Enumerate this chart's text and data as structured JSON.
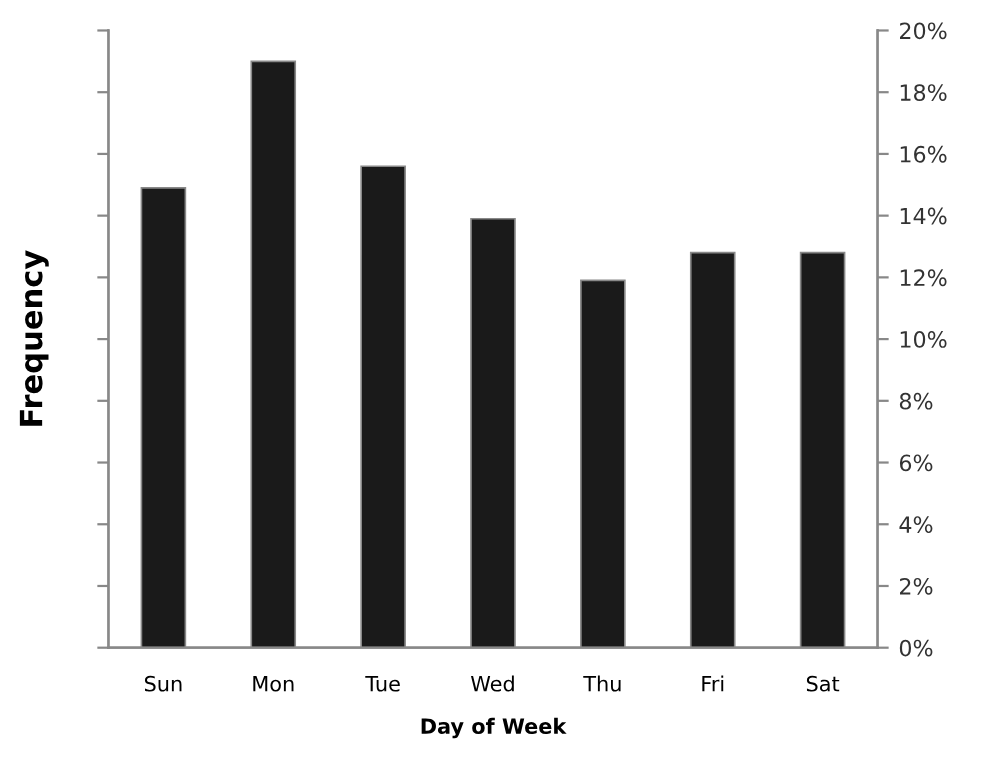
{
  "chart_data": {
    "type": "bar",
    "xlabel": "Day of Week",
    "ylabel": "Frequency",
    "categories": [
      "Sun",
      "Mon",
      "Tue",
      "Wed",
      "Thu",
      "Fri",
      "Sat"
    ],
    "series": [
      {
        "color": "#1a1a1a",
        "axis": "y2",
        "values": [
          14.9,
          19.0,
          15.6,
          13.9,
          11.9,
          12.8,
          12.8
        ]
      }
    ],
    "y2lim": [
      0,
      20
    ],
    "y2ticks": [
      {
        "value": 0,
        "label": "0%"
      },
      {
        "value": 2,
        "label": "2%"
      },
      {
        "value": 4,
        "label": "4%"
      },
      {
        "value": 6,
        "label": "6%"
      },
      {
        "value": 8,
        "label": "8%"
      },
      {
        "value": 10,
        "label": "10%"
      },
      {
        "value": 12,
        "label": "12%"
      },
      {
        "value": 14,
        "label": "14%"
      },
      {
        "value": 16,
        "label": "16%"
      },
      {
        "value": 18,
        "label": "18%"
      },
      {
        "value": 20,
        "label": "20%"
      }
    ],
    "grid": false,
    "legend": false
  }
}
